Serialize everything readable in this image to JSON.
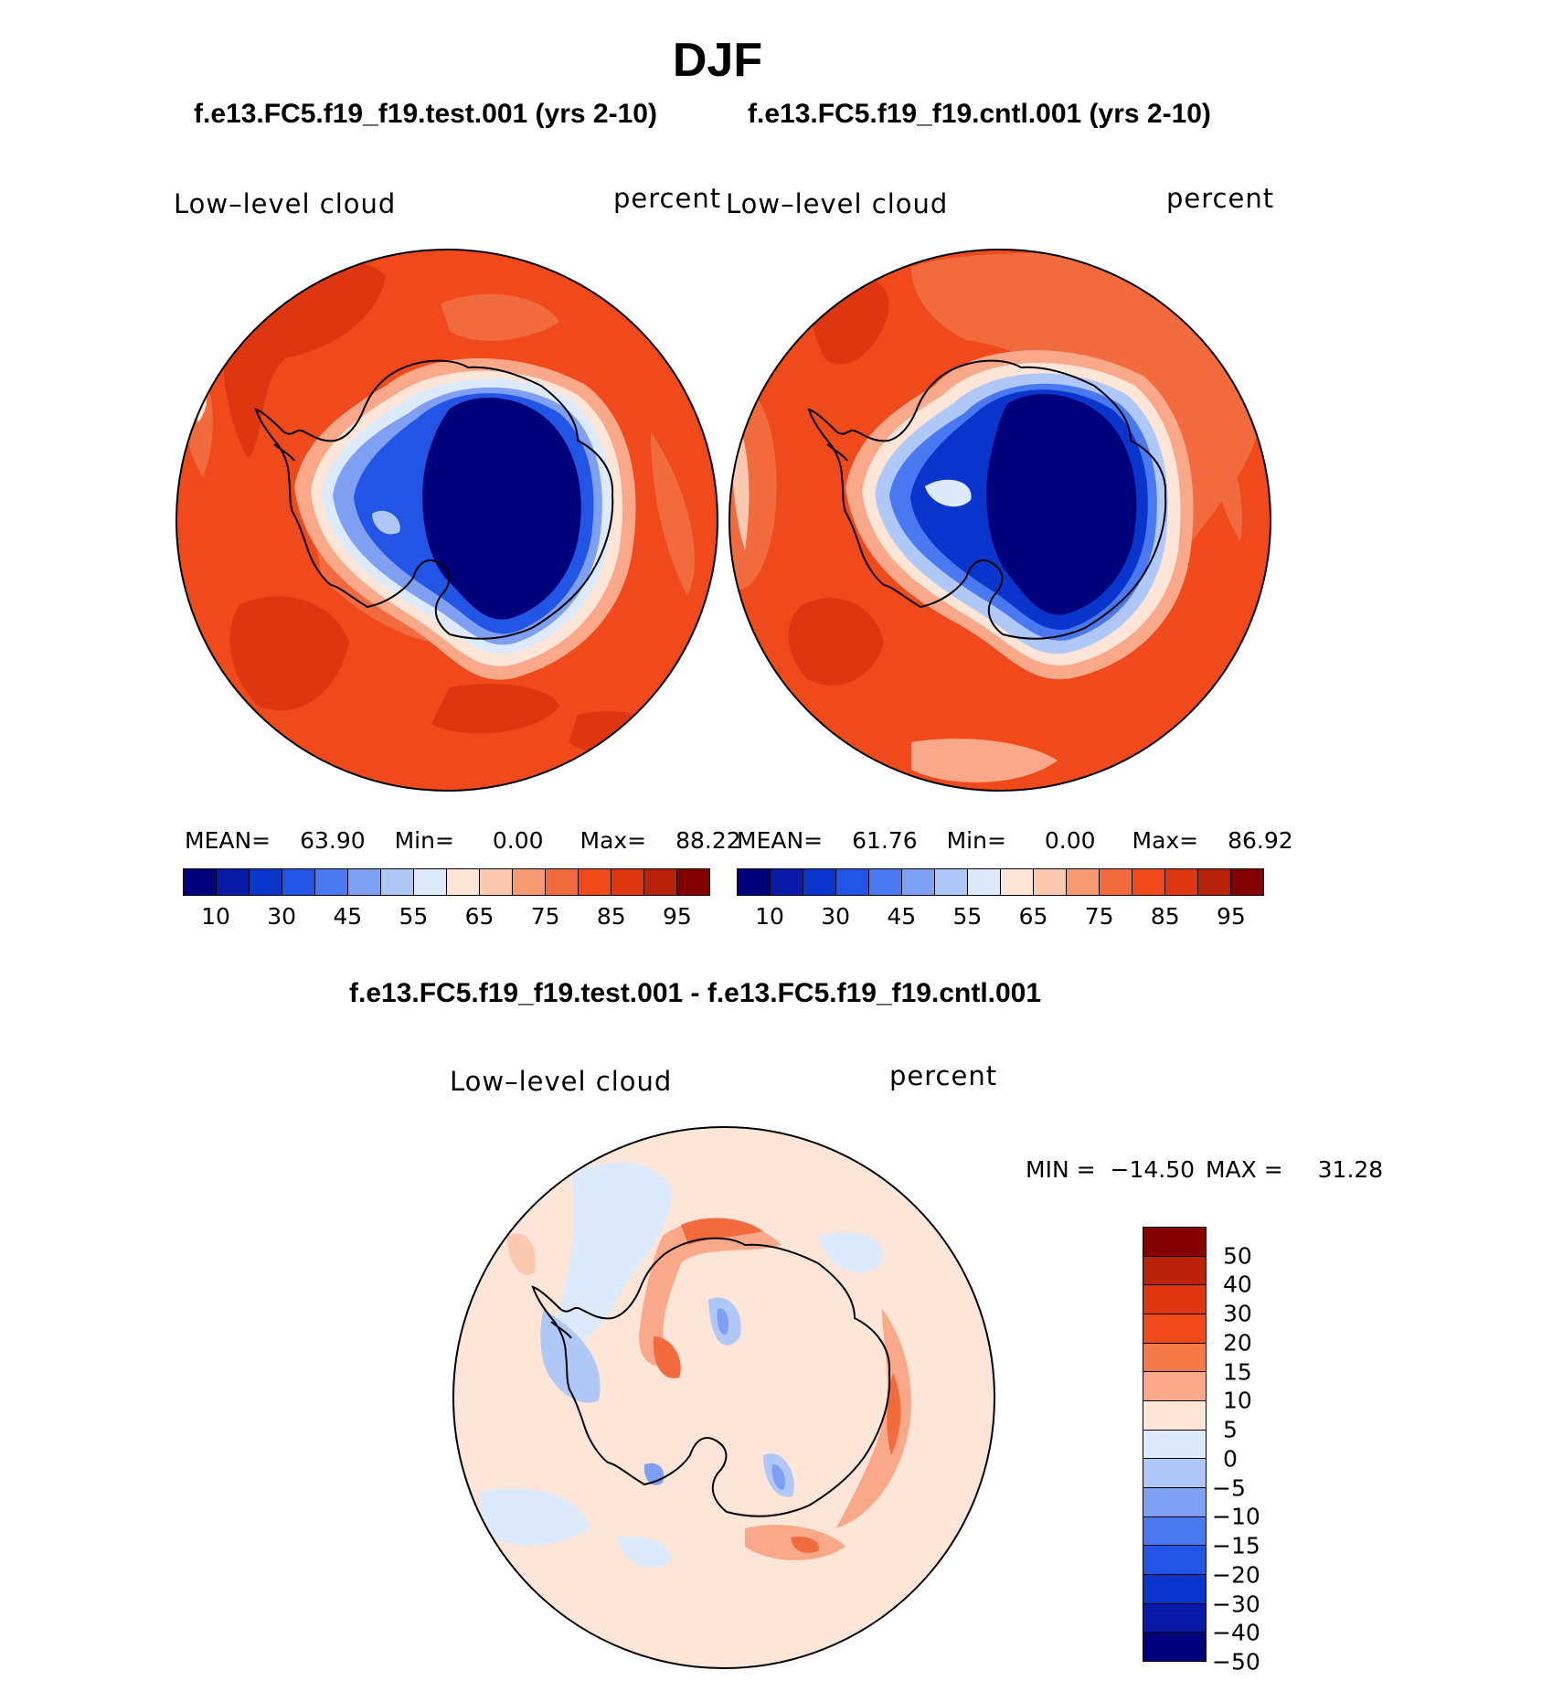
{
  "page_title": "DJF",
  "panels": {
    "left": {
      "case_title": "f.e13.FC5.f19_f19.test.001 (yrs 2-10)",
      "variable": "Low–level cloud",
      "units": "percent",
      "stats": {
        "mean_label": "MEAN=",
        "mean": "63.90",
        "min_label": "Min=",
        "min": "0.00",
        "max_label": "Max=",
        "max": "88.22"
      }
    },
    "right": {
      "case_title": "f.e13.FC5.f19_f19.cntl.001 (yrs 2-10)",
      "variable": "Low–level cloud",
      "units": "percent",
      "stats": {
        "mean_label": "MEAN=",
        "mean": "61.76",
        "min_label": "Min=",
        "min": "0.00",
        "max_label": "Max=",
        "max": "86.92"
      }
    },
    "diff": {
      "case_title": "f.e13.FC5.f19_f19.test.001 - f.e13.FC5.f19_f19.cntl.001",
      "variable": "Low–level cloud",
      "units": "percent",
      "minmax": {
        "min_label": "MIN =",
        "min": "−14.50",
        "max_label": "MAX =",
        "max": "31.28"
      }
    }
  },
  "colorbar_abs": {
    "colors": [
      "#00007a",
      "#0a1aa8",
      "#0a35cc",
      "#2255e6",
      "#4a78f0",
      "#7f9ff3",
      "#b0c8f7",
      "#dceafb",
      "#fde6d8",
      "#fbc9b0",
      "#f79a74",
      "#f26b3e",
      "#f04a1c",
      "#de3611",
      "#b72209",
      "#820000"
    ],
    "tick_labels": [
      "10",
      "30",
      "45",
      "55",
      "65",
      "75",
      "85",
      "95"
    ]
  },
  "colorbar_diff": {
    "colors": [
      "#820000",
      "#b72209",
      "#de3611",
      "#f04a1c",
      "#f57a4a",
      "#f9a98a",
      "#fde6d8",
      "#dceafb",
      "#b0c8f7",
      "#7f9ff3",
      "#4a78f0",
      "#2255e6",
      "#0a35cc",
      "#0a1aa8",
      "#00007a"
    ],
    "tick_labels": [
      "50",
      "40",
      "30",
      "20",
      "15",
      "10",
      "5",
      "0",
      "−5",
      "−10",
      "−15",
      "−20",
      "−30",
      "−40",
      "−50"
    ]
  }
}
